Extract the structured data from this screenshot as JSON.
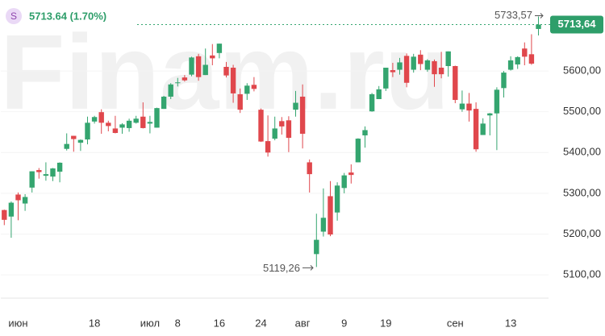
{
  "header": {
    "symbol_icon": "S",
    "quote": "5713.64 (1.70%)"
  },
  "watermark": "Finam.ru",
  "chart_data": {
    "type": "candlestick",
    "categories": [
      null,
      null,
      "июн",
      null,
      null,
      null,
      null,
      null,
      null,
      null,
      null,
      null,
      null,
      "18",
      null,
      null,
      null,
      null,
      null,
      null,
      null,
      "июл",
      null,
      null,
      null,
      "8",
      null,
      null,
      null,
      null,
      null,
      "16",
      null,
      null,
      null,
      null,
      null,
      "24",
      null,
      null,
      null,
      null,
      null,
      "авг",
      null,
      null,
      null,
      null,
      null,
      "9",
      null,
      null,
      null,
      null,
      null,
      "19",
      null,
      null,
      null,
      null,
      null,
      null,
      null,
      null,
      null,
      "сен",
      null,
      null,
      null,
      null,
      null,
      null,
      null,
      "13",
      null,
      null,
      null,
      null
    ],
    "open": [
      5259,
      5243,
      5297,
      5275,
      5314,
      5357,
      5343,
      5341,
      5353,
      5409,
      5441,
      5424,
      5432,
      5476,
      5499,
      5473,
      5459,
      5461,
      5460,
      5473,
      5488,
      5471,
      5461,
      5507,
      5537,
      5572,
      5584,
      5591,
      5636,
      5590,
      5638,
      5644,
      5610,
      5608,
      5543,
      5544,
      5566,
      5505,
      5428,
      5434,
      5477,
      5479,
      5505,
      5537,
      5376,
      5151,
      5206,
      5293,
      5253,
      5313,
      5351,
      5376,
      5442,
      5501,
      5531,
      5557,
      5602,
      5603,
      5637,
      5603,
      5640,
      5603,
      5624,
      5608,
      5612,
      5612,
      5506,
      5520,
      5507,
      5443,
      5491,
      5496,
      5558,
      5603,
      5616,
      5655,
      5641,
      5703
    ],
    "high": [
      5260,
      5280,
      5302,
      5298,
      5354,
      5362,
      5376,
      5362,
      5376,
      5447,
      5441,
      5432,
      5488,
      5490,
      5506,
      5478,
      5490,
      5472,
      5483,
      5490,
      5523,
      5490,
      5510,
      5539,
      5570,
      5583,
      5590,
      5635,
      5642,
      5655,
      5666,
      5667,
      5622,
      5615,
      5557,
      5570,
      5585,
      5508,
      5491,
      5488,
      5487,
      5489,
      5551,
      5567,
      5383,
      5250,
      5312,
      5330,
      5327,
      5350,
      5371,
      5435,
      5464,
      5546,
      5563,
      5608,
      5620,
      5632,
      5643,
      5642,
      5651,
      5629,
      5628,
      5647,
      5648,
      5613,
      5552,
      5546,
      5523,
      5484,
      5497,
      5560,
      5600,
      5636,
      5636,
      5670,
      5690,
      5733.57
    ],
    "low": [
      5222,
      5191,
      5234,
      5257,
      5302,
      5336,
      5331,
      5330,
      5327,
      5405,
      5402,
      5404,
      5420,
      5471,
      5446,
      5452,
      5447,
      5446,
      5451,
      5471,
      5459,
      5447,
      5461,
      5507,
      5531,
      5562,
      5574,
      5587,
      5576,
      5590,
      5614,
      5631,
      5584,
      5522,
      5497,
      5529,
      5550,
      5426,
      5390,
      5430,
      5444,
      5401,
      5488,
      5410,
      5302,
      5119.26,
      5194,
      5195,
      5233,
      5300,
      5324,
      5376,
      5412,
      5500,
      5531,
      5551,
      5585,
      5591,
      5560,
      5596,
      5602,
      5598,
      5561,
      5582,
      5586,
      5521,
      5500,
      5476,
      5402,
      5443,
      5442,
      5406,
      5535,
      5601,
      5605,
      5614,
      5615,
      5687
    ],
    "close": [
      5235,
      5277,
      5283,
      5291,
      5354,
      5352,
      5347,
      5361,
      5375,
      5421,
      5433,
      5431,
      5473,
      5487,
      5473,
      5465,
      5448,
      5469,
      5478,
      5483,
      5460,
      5475,
      5509,
      5537,
      5567,
      5572,
      5577,
      5633,
      5585,
      5615,
      5631,
      5667,
      5589,
      5545,
      5505,
      5564,
      5556,
      5427,
      5400,
      5459,
      5464,
      5436,
      5522,
      5446,
      5347,
      5186,
      5240,
      5199,
      5319,
      5344,
      5345,
      5434,
      5455,
      5543,
      5555,
      5608,
      5597,
      5621,
      5571,
      5635,
      5617,
      5626,
      5592,
      5592,
      5648,
      5529,
      5520,
      5503,
      5408,
      5471,
      5496,
      5554,
      5596,
      5626,
      5634,
      5635,
      5618,
      5713.64
    ],
    "up_color": "#34a56f",
    "down_color": "#e0474c",
    "ylim": [
      5043,
      5774
    ],
    "yticks": [
      {
        "value": 5100,
        "label": "5100,00"
      },
      {
        "value": 5200,
        "label": "5200,00"
      },
      {
        "value": 5300,
        "label": "5300,00"
      },
      {
        "value": 5400,
        "label": "5400,00"
      },
      {
        "value": 5500,
        "label": "5500,00"
      },
      {
        "value": 5600,
        "label": "5600,00"
      }
    ],
    "last_price": {
      "value": 5713.64,
      "label": "5713,64"
    },
    "high_annotation": {
      "value": 5733.57,
      "label": "5733,57"
    },
    "low_annotation": {
      "value": 5119.26,
      "label": "5119,26"
    }
  }
}
